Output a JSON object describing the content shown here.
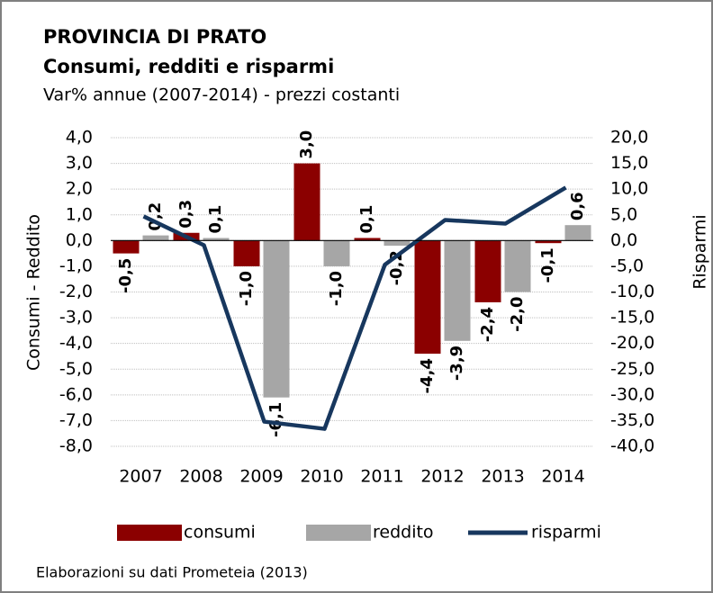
{
  "chart_data": {
    "type": "bar",
    "title": "PROVINCIA DI PRATO",
    "subtitle": "Consumi, redditi e risparmi",
    "subtitle2": "Var% annue (2007-2014) - prezzi costanti",
    "ylabel": "Consumi - Reddito",
    "y2label": "Risparmi",
    "source": "Elaborazioni su dati Prometeia (2013)",
    "categories": [
      "2007",
      "2008",
      "2009",
      "2010",
      "2011",
      "2012",
      "2013",
      "2014"
    ],
    "series": [
      {
        "name": "consumi",
        "type": "bar",
        "color": "#8b0000",
        "values": [
          -0.5,
          0.3,
          -1.0,
          3.0,
          0.1,
          -4.4,
          -2.4,
          -0.1
        ],
        "value_labels": [
          "-0,5",
          "0,3",
          "-1,0",
          "3,0",
          "0,1",
          "-4,4",
          "-2,4",
          "-0,1"
        ]
      },
      {
        "name": "reddito",
        "type": "bar",
        "color": "#a6a6a6",
        "values": [
          0.2,
          0.1,
          -6.1,
          -1.0,
          -0.2,
          -3.9,
          -2.0,
          0.6
        ],
        "value_labels": [
          "0,2",
          "0,1",
          "-6,1",
          "-1,0",
          "-0,2",
          "-3,9",
          "-2,0",
          "0,6"
        ]
      },
      {
        "name": "risparmi",
        "type": "line",
        "axis": "y2",
        "color": "#17375e",
        "values": [
          4.7,
          -0.9,
          -35.2,
          -36.6,
          -4.7,
          4.0,
          3.3,
          10.3
        ]
      }
    ],
    "ylim": [
      -8,
      4
    ],
    "yticks": [
      {
        "value": 4,
        "label": "4,0"
      },
      {
        "value": 3,
        "label": "3,0"
      },
      {
        "value": 2,
        "label": "2,0"
      },
      {
        "value": 1,
        "label": "1,0"
      },
      {
        "value": 0,
        "label": "0,0"
      },
      {
        "value": -1,
        "label": "-1,0"
      },
      {
        "value": -2,
        "label": "-2,0"
      },
      {
        "value": -3,
        "label": "-3,0"
      },
      {
        "value": -4,
        "label": "-4,0"
      },
      {
        "value": -5,
        "label": "-5,0"
      },
      {
        "value": -6,
        "label": "-6,0"
      },
      {
        "value": -7,
        "label": "-7,0"
      },
      {
        "value": -8,
        "label": "-8,0"
      }
    ],
    "y2lim": [
      -40,
      20
    ],
    "y2ticks": [
      {
        "value": 20,
        "label": "20,0"
      },
      {
        "value": 15,
        "label": "15,0"
      },
      {
        "value": 10,
        "label": "10,0"
      },
      {
        "value": 5,
        "label": "5,0"
      },
      {
        "value": 0,
        "label": "0,0"
      },
      {
        "value": -5,
        "label": "-5,0"
      },
      {
        "value": -10,
        "label": "-10,0"
      },
      {
        "value": -15,
        "label": "-15,0"
      },
      {
        "value": -20,
        "label": "-20,0"
      },
      {
        "value": -25,
        "label": "-25,0"
      },
      {
        "value": -30,
        "label": "-30,0"
      },
      {
        "value": -35,
        "label": "-35,0"
      },
      {
        "value": -40,
        "label": "-40,0"
      }
    ],
    "grid": true
  }
}
